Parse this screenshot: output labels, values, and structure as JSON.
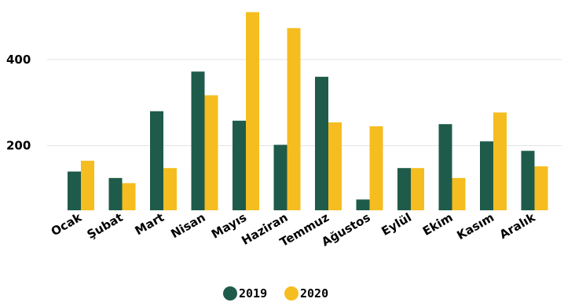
{
  "chart_data": {
    "type": "bar",
    "categories": [
      "Ocak",
      "Şubat",
      "Mart",
      "Nisan",
      "Mayıs",
      "Haziran",
      "Temmuz",
      "Ağustos",
      "Eylül",
      "Ekim",
      "Kasım",
      "Aralık"
    ],
    "series": [
      {
        "name": "2019",
        "color": "#1f5b4a",
        "values": [
          140,
          125,
          280,
          372,
          258,
          202,
          360,
          75,
          148,
          250,
          210,
          188
        ]
      },
      {
        "name": "2020",
        "color": "#f5bd1f",
        "values": [
          165,
          113,
          148,
          317,
          510,
          473,
          254,
          245,
          148,
          125,
          277,
          152
        ]
      }
    ],
    "yticks": [
      200,
      400
    ],
    "ylim": [
      50,
      520
    ],
    "grid": true,
    "legend_position": "bottom-center"
  }
}
